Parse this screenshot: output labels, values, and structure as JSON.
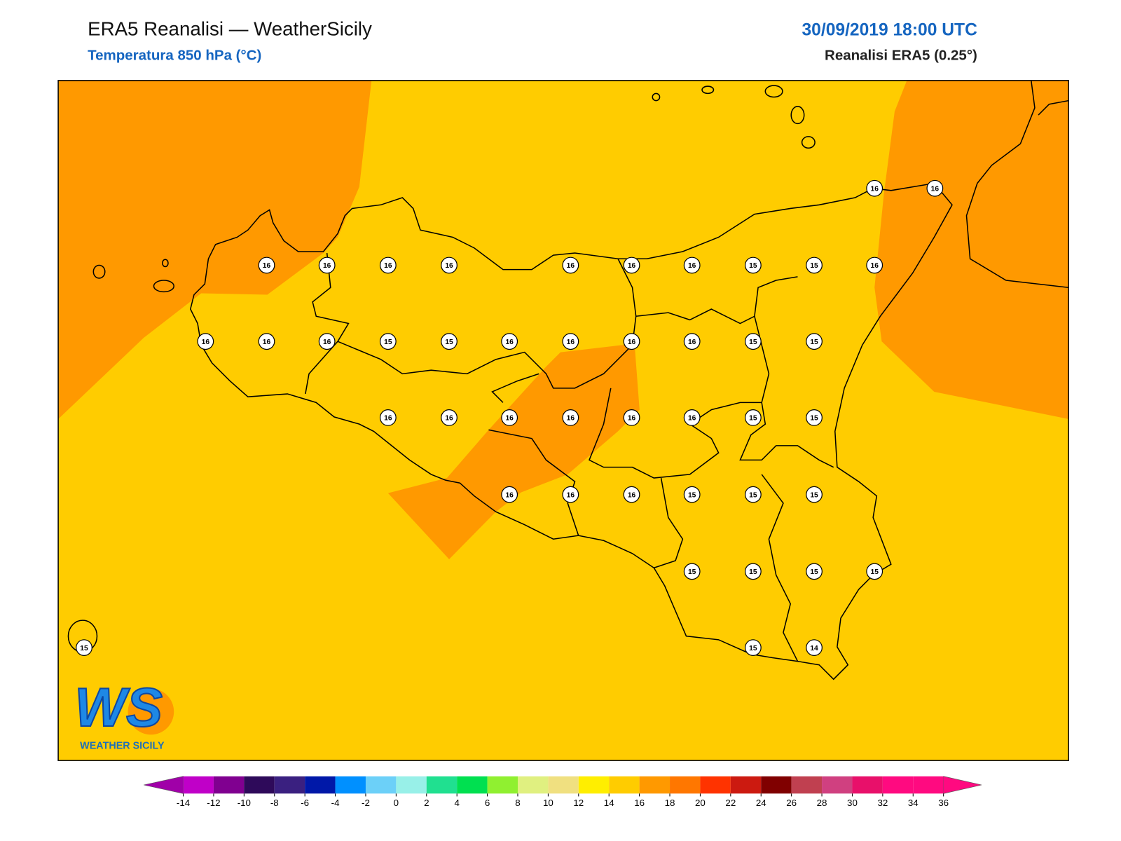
{
  "header": {
    "title": "ERA5 Reanalisi — WeatherSicily",
    "subtitle": "Temperatura 850 hPa (°C)",
    "datetime": "30/09/2019 18:00 UTC",
    "source": "Reanalisi ERA5 (0.25°)"
  },
  "station_values": [
    16,
    16,
    16,
    16,
    16,
    16,
    16,
    16,
    16,
    15,
    15,
    16,
    16,
    16,
    16,
    15,
    15,
    16,
    16,
    16,
    16,
    15,
    15,
    16,
    16,
    16,
    16,
    16,
    16,
    15,
    15,
    16,
    16,
    16,
    15,
    15,
    15,
    15,
    15,
    15,
    15,
    15,
    15,
    14
  ],
  "logo": {
    "text": "WS",
    "caption": "WEATHER SICILY"
  },
  "colorbar": {
    "ticks": [
      -14,
      -12,
      -10,
      -8,
      -6,
      -4,
      -2,
      0,
      2,
      4,
      6,
      8,
      10,
      12,
      14,
      16,
      18,
      20,
      22,
      24,
      26,
      28,
      30,
      32,
      34,
      36
    ],
    "colors": [
      "#c000c8",
      "#800090",
      "#2e0a5a",
      "#3a2080",
      "#0018a8",
      "#0090ff",
      "#6cd0f8",
      "#98f0e8",
      "#20e090",
      "#00e050",
      "#90f030",
      "#e0f080",
      "#f0e080",
      "#ffee00",
      "#ffcc00",
      "#ff9900",
      "#ff7700",
      "#ff3300",
      "#cc1a10",
      "#800000",
      "#c04050",
      "#d04080",
      "#e8106a",
      "#ff0a80",
      "#ff0a80"
    ],
    "under_color": "#a000a8",
    "over_color": "#ff0a80"
  }
}
